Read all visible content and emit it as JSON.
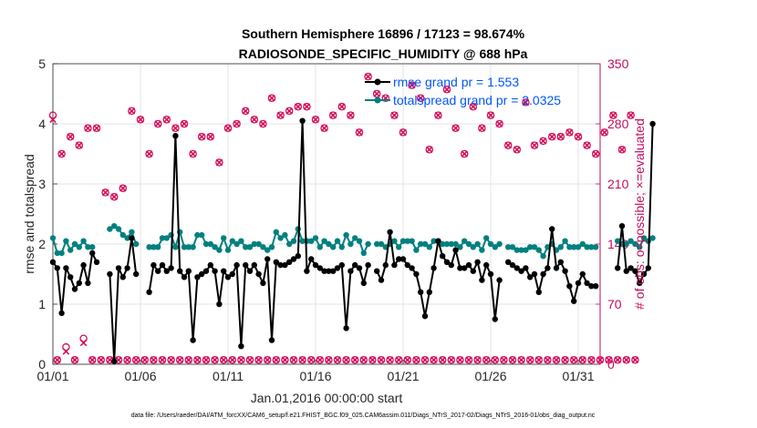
{
  "chart_data": {
    "type": "line",
    "title": "Southern Hemisphere 16896 / 17123 = 98.674%",
    "subtitle": "RADIOSONDE_SPECIFIC_HUMIDITY @ 688 hPa",
    "xlabel": "Jan.01,2016 00:00:00 start",
    "ylabel_left": "rmse and totalspread",
    "ylabel_right": "# of obs: o=possible; ×=evaluated",
    "footnote": "data file: /Users/raeder/DAI/ATM_forcXX/CAM6_setup/f.e21.FHIST_BGC.f09_025.CAM6assim.011/Diags_NTrS_2017-02/Diags_NTrS_2016-01/obs_diag_output.nc",
    "x_range": [
      1,
      32.25
    ],
    "x_ticks": [
      1,
      6,
      11,
      16,
      21,
      26,
      31
    ],
    "x_tick_labels": [
      "01/01",
      "01/06",
      "01/11",
      "01/16",
      "01/21",
      "01/26",
      "01/31"
    ],
    "y_left_range": [
      0,
      5
    ],
    "y_left_ticks": [
      "0",
      "1",
      "2",
      "3",
      "4",
      "5"
    ],
    "y_right_range": [
      0,
      350
    ],
    "y_right_ticks": [
      "0",
      "70",
      "140",
      "210",
      "280",
      "350"
    ],
    "colors": {
      "rmse": "#000000",
      "spread": "#00807f",
      "obs": "#d40f5c",
      "right_axis": "#c20d5a",
      "legend_text": "#0055ff"
    },
    "series": [
      {
        "name": "rmse grand pr = 1.553",
        "axis": "left",
        "values": [
          1.7,
          1.6,
          0.85,
          1.6,
          1.45,
          1.25,
          1.35,
          1.65,
          1.35,
          1.85,
          1.7,
          null,
          null,
          1.5,
          0.05,
          1.6,
          1.45,
          1.6,
          2.1,
          1.5,
          null,
          null,
          1.2,
          1.65,
          1.55,
          1.65,
          1.55,
          1.6,
          3.8,
          1.55,
          1.45,
          1.55,
          0.4,
          1.45,
          1.5,
          1.55,
          1.65,
          1.55,
          1.0,
          1.55,
          1.45,
          1.5,
          1.65,
          0.3,
          1.65,
          1.55,
          1.65,
          1.5,
          1.35,
          1.75,
          0.4,
          1.7,
          1.65,
          1.65,
          1.7,
          1.75,
          1.8,
          4.05,
          1.55,
          1.75,
          1.65,
          1.6,
          1.55,
          1.55,
          1.55,
          1.6,
          1.65,
          0.6,
          1.55,
          1.65,
          1.6,
          1.35,
          1.65,
          null,
          1.55,
          1.4,
          1.65,
          2.2,
          1.65,
          1.75,
          1.75,
          1.65,
          1.6,
          1.5,
          1.2,
          0.8,
          1.2,
          1.6,
          2.05,
          1.8,
          1.7,
          1.65,
          1.9,
          1.6,
          1.6,
          1.65,
          1.55,
          1.7,
          1.4,
          1.65,
          1.5,
          0.75,
          1.4,
          null,
          1.7,
          1.65,
          1.6,
          1.55,
          1.6,
          1.45,
          1.5,
          1.2,
          1.5,
          1.6,
          2.25,
          1.6,
          1.7,
          1.55,
          1.3,
          1.05,
          1.35,
          1.5,
          1.35,
          1.3,
          1.3,
          null,
          null,
          null,
          null,
          1.6,
          2.3,
          1.55,
          1.6,
          1.55,
          1.35,
          1.5,
          1.6,
          4.0
        ]
      },
      {
        "name": "totalspread grand pr = 2.0325",
        "axis": "left",
        "values": [
          2.1,
          1.85,
          1.85,
          2.05,
          1.9,
          2.0,
          1.95,
          2.05,
          1.95,
          1.95,
          null,
          null,
          null,
          2.25,
          2.3,
          2.25,
          2.15,
          2.1,
          2.2,
          2.0,
          null,
          null,
          1.95,
          1.95,
          1.95,
          2.1,
          2.1,
          2.15,
          1.95,
          2.2,
          1.95,
          1.95,
          1.95,
          2.15,
          2.15,
          2.0,
          2.0,
          1.95,
          1.9,
          2.1,
          1.9,
          2.05,
          2.0,
          2.05,
          1.95,
          1.95,
          2.0,
          2.0,
          1.95,
          1.9,
          1.95,
          2.2,
          2.1,
          2.15,
          2.0,
          2.05,
          2.25,
          2.05,
          2.05,
          2.05,
          2.1,
          1.95,
          2.05,
          2.0,
          1.95,
          2.05,
          1.95,
          2.15,
          2.0,
          2.1,
          2.05,
          1.85,
          2.0,
          null,
          2.0,
          2.0,
          1.95,
          2.0,
          2.05,
          1.95,
          2.05,
          2.05,
          2.05,
          1.9,
          2.0,
          2.0,
          1.95,
          2.05,
          2.05,
          2.0,
          2.0,
          2.0,
          2.0,
          1.95,
          2.05,
          2.0,
          1.95,
          2.0,
          1.9,
          2.1,
          2.0,
          1.95,
          2.0,
          null,
          1.95,
          1.95,
          1.9,
          1.9,
          1.9,
          1.95,
          1.95,
          1.9,
          1.8,
          1.95,
          2.0,
          1.9,
          1.95,
          2.05,
          1.95,
          1.95,
          1.95,
          2.0,
          1.95,
          1.95,
          1.95,
          null,
          null,
          null,
          null,
          2.05,
          2.0,
          2.0,
          2.05,
          2.0,
          1.95,
          2.1,
          2.05,
          2.1
        ]
      },
      {
        "name": "obs possible (o)",
        "axis": "right",
        "values": [
          290,
          5,
          245,
          20,
          265,
          5,
          255,
          30,
          275,
          5,
          275,
          5,
          200,
          5,
          195,
          5,
          205,
          5,
          295,
          5,
          285,
          5,
          245,
          5,
          280,
          5,
          285,
          5,
          275,
          5,
          280,
          5,
          245,
          5,
          265,
          5,
          265,
          5,
          235,
          5,
          275,
          5,
          280,
          5,
          295,
          5,
          285,
          5,
          280,
          5,
          310,
          5,
          290,
          5,
          295,
          5,
          300,
          5,
          300,
          5,
          285,
          5,
          275,
          5,
          290,
          5,
          300,
          5,
          290,
          5,
          270,
          5,
          335,
          5,
          315,
          5,
          310,
          5,
          290,
          5,
          270,
          5,
          325,
          5,
          310,
          5,
          250,
          5,
          290,
          5,
          320,
          5,
          275,
          5,
          245,
          5,
          300,
          5,
          275,
          5,
          290,
          5,
          280,
          5,
          255,
          5,
          250,
          5,
          305,
          5,
          255,
          5,
          260,
          5,
          265,
          5,
          265,
          5,
          270,
          5,
          265,
          5,
          255,
          5,
          245,
          5,
          270,
          5,
          290,
          5,
          250,
          5,
          290,
          5
        ]
      },
      {
        "name": "obs evaluated (×)",
        "axis": "right",
        "values": [
          285,
          5,
          245,
          15,
          265,
          5,
          255,
          25,
          275,
          5,
          275,
          5,
          200,
          5,
          195,
          5,
          205,
          5,
          295,
          5,
          285,
          5,
          245,
          5,
          280,
          5,
          285,
          5,
          275,
          5,
          280,
          5,
          245,
          5,
          265,
          5,
          265,
          5,
          235,
          5,
          275,
          5,
          280,
          5,
          295,
          5,
          285,
          5,
          280,
          5,
          310,
          5,
          290,
          5,
          295,
          5,
          300,
          5,
          300,
          5,
          285,
          5,
          275,
          5,
          290,
          5,
          300,
          5,
          290,
          5,
          270,
          5,
          335,
          5,
          315,
          5,
          310,
          5,
          290,
          5,
          270,
          5,
          325,
          5,
          310,
          5,
          250,
          5,
          290,
          5,
          320,
          5,
          275,
          5,
          245,
          5,
          300,
          5,
          275,
          5,
          290,
          5,
          280,
          5,
          255,
          5,
          250,
          5,
          305,
          5,
          255,
          5,
          260,
          5,
          265,
          5,
          265,
          5,
          270,
          5,
          265,
          5,
          255,
          5,
          245,
          5,
          270,
          5,
          290,
          5,
          250,
          5,
          290,
          5
        ]
      }
    ]
  }
}
